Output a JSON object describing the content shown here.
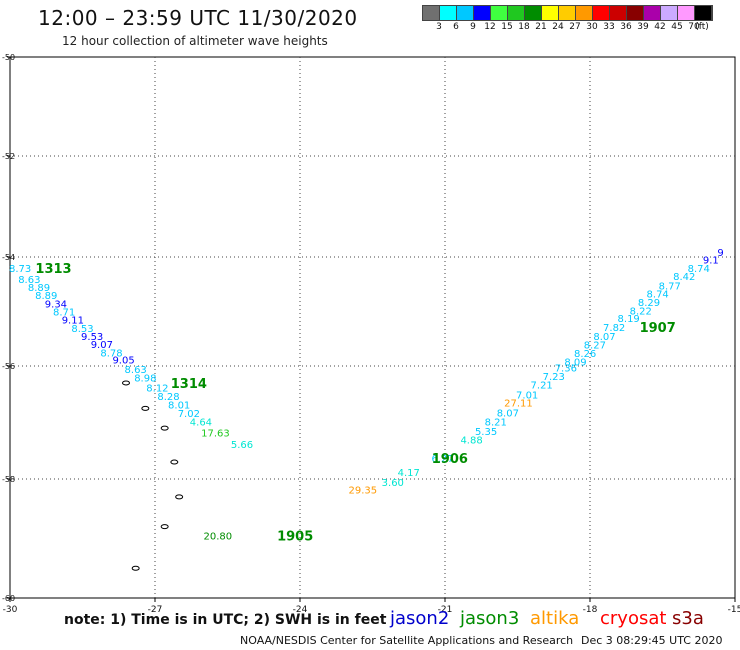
{
  "header": {
    "title": "12:00 – 23:59 UTC 11/30/2020",
    "subtitle": "12 hour collection of altimeter wave heights"
  },
  "color_scale": {
    "colors": [
      "#707070",
      "#00ffff",
      "#00c8ff",
      "#0000ff",
      "#40ff40",
      "#20c820",
      "#008c00",
      "#ffff00",
      "#ffcc00",
      "#ff9900",
      "#ff0000",
      "#cc0000",
      "#880000",
      "#aa00aa",
      "#ccaaff",
      "#ff99ff",
      "#000000"
    ],
    "labels": [
      "3",
      "6",
      "9",
      "12",
      "15",
      "18",
      "21",
      "24",
      "27",
      "30",
      "33",
      "36",
      "39",
      "42",
      "45",
      "70",
      "(ft)"
    ]
  },
  "footer": {
    "note": "note: 1) Time is in UTC; 2) SWH is in feet",
    "credit": "NOAA/NESDIS Center for Satellite Applications and Research",
    "generated": "Dec  3 08:29:45 UTC 2020"
  },
  "satellites": [
    {
      "name": "jason2",
      "color": "#0000cc"
    },
    {
      "name": "jason3",
      "color": "#008c00"
    },
    {
      "name": "altika",
      "color": "#ff9900"
    },
    {
      "name": "cryosat",
      "color": "#ff0000"
    },
    {
      "name": "s3a",
      "color": "#880000"
    }
  ],
  "chart_data": {
    "type": "scatter",
    "title": "12:00 – 23:59 UTC 11/30/2020",
    "xlabel": "",
    "ylabel": "",
    "xlim": [
      -30,
      -15
    ],
    "ylim": [
      -60,
      -50
    ],
    "xticks": [
      -30,
      -27,
      -24,
      -21,
      -18,
      -15
    ],
    "xtick_labels": [
      "-30",
      "-27",
      "-24",
      "-21",
      "-18",
      "-15"
    ],
    "yticks": [
      -50,
      -52,
      -54,
      -56,
      -58,
      -60
    ],
    "ytick_labels": [
      "-50",
      "-52",
      "-54",
      "-56",
      "-58",
      "-60"
    ],
    "grid": true,
    "units": "ft",
    "points": [
      {
        "x": -29.79,
        "y": -54.2,
        "value": "8.73",
        "color": "#00c8ff"
      },
      {
        "x": -29.6,
        "y": -54.4,
        "value": "8.63",
        "color": "#00c8ff"
      },
      {
        "x": -29.4,
        "y": -54.55,
        "value": "8.89",
        "color": "#00c8ff"
      },
      {
        "x": -29.25,
        "y": -54.7,
        "value": "8.89",
        "color": "#00c8ff"
      },
      {
        "x": -29.05,
        "y": -54.85,
        "value": "9.34",
        "color": "#0000ff"
      },
      {
        "x": -28.88,
        "y": -55.0,
        "value": "8.71",
        "color": "#00c8ff"
      },
      {
        "x": -28.7,
        "y": -55.15,
        "value": "9.11",
        "color": "#0000ff"
      },
      {
        "x": -28.5,
        "y": -55.3,
        "value": "8.53",
        "color": "#00c8ff"
      },
      {
        "x": -28.3,
        "y": -55.45,
        "value": "9.53",
        "color": "#0000ff"
      },
      {
        "x": -28.1,
        "y": -55.6,
        "value": "9.07",
        "color": "#0000ff"
      },
      {
        "x": -27.9,
        "y": -55.75,
        "value": "8.78",
        "color": "#00c8ff"
      },
      {
        "x": -27.65,
        "y": -55.88,
        "value": "9.05",
        "color": "#0000ff"
      },
      {
        "x": -27.4,
        "y": -56.05,
        "value": "8.63",
        "color": "#00c8ff"
      },
      {
        "x": -27.2,
        "y": -56.2,
        "value": "8.98",
        "color": "#00c8ff"
      },
      {
        "x": -26.95,
        "y": -56.38,
        "value": "8.12",
        "color": "#00c8ff"
      },
      {
        "x": -26.72,
        "y": -56.53,
        "value": "8.28",
        "color": "#00c8ff"
      },
      {
        "x": -26.5,
        "y": -56.68,
        "value": "8.01",
        "color": "#00c8ff"
      },
      {
        "x": -26.3,
        "y": -56.83,
        "value": "7.02",
        "color": "#00c8ff"
      },
      {
        "x": -26.05,
        "y": -56.98,
        "value": "4.64",
        "color": "#00e6d2"
      },
      {
        "x": -25.75,
        "y": -57.18,
        "value": "17.63",
        "color": "#20c820"
      },
      {
        "x": -25.2,
        "y": -57.38,
        "value": "5.66",
        "color": "#00e6d2"
      },
      {
        "x": -25.7,
        "y": -58.95,
        "value": "20.80",
        "color": "#008c00"
      },
      {
        "x": -22.7,
        "y": -58.18,
        "value": "29.35",
        "color": "#ff9900"
      },
      {
        "x": -22.08,
        "y": -58.05,
        "value": "3.60",
        "color": "#00e6d2"
      },
      {
        "x": -21.75,
        "y": -57.88,
        "value": "4.17",
        "color": "#00e6d2"
      },
      {
        "x": -21.05,
        "y": -57.63,
        "value": "6.27",
        "color": "#00c8ff"
      },
      {
        "x": -20.45,
        "y": -57.3,
        "value": "4.88",
        "color": "#00e6d2"
      },
      {
        "x": -20.15,
        "y": -57.15,
        "value": "5.35",
        "color": "#00c8ff"
      },
      {
        "x": -19.95,
        "y": -56.98,
        "value": "8.21",
        "color": "#00c8ff"
      },
      {
        "x": -19.7,
        "y": -56.82,
        "value": "8.07",
        "color": "#00c8ff"
      },
      {
        "x": -19.48,
        "y": -56.65,
        "value": "27.11",
        "color": "#ff9900"
      },
      {
        "x": -19.3,
        "y": -56.5,
        "value": "7.01",
        "color": "#00c8ff"
      },
      {
        "x": -19.0,
        "y": -56.33,
        "value": "7.21",
        "color": "#00c8ff"
      },
      {
        "x": -18.75,
        "y": -56.18,
        "value": "7.23",
        "color": "#00c8ff"
      },
      {
        "x": -18.5,
        "y": -56.03,
        "value": "7.36",
        "color": "#00c8ff"
      },
      {
        "x": -18.3,
        "y": -55.92,
        "value": "8.09",
        "color": "#00c8ff"
      },
      {
        "x": -18.1,
        "y": -55.76,
        "value": "8.26",
        "color": "#00c8ff"
      },
      {
        "x": -17.9,
        "y": -55.61,
        "value": "8.27",
        "color": "#00c8ff"
      },
      {
        "x": -17.7,
        "y": -55.45,
        "value": "8.07",
        "color": "#00c8ff"
      },
      {
        "x": -17.5,
        "y": -55.28,
        "value": "7.82",
        "color": "#00c8ff"
      },
      {
        "x": -17.2,
        "y": -55.12,
        "value": "8.19",
        "color": "#00c8ff"
      },
      {
        "x": -16.95,
        "y": -54.98,
        "value": "8.22",
        "color": "#00c8ff"
      },
      {
        "x": -16.78,
        "y": -54.83,
        "value": "8.29",
        "color": "#00c8ff"
      },
      {
        "x": -16.6,
        "y": -54.67,
        "value": "8.74",
        "color": "#00c8ff"
      },
      {
        "x": -16.35,
        "y": -54.52,
        "value": "8.77",
        "color": "#00c8ff"
      },
      {
        "x": -16.05,
        "y": -54.35,
        "value": "8.42",
        "color": "#00c8ff"
      },
      {
        "x": -15.75,
        "y": -54.2,
        "value": "8.74",
        "color": "#00c8ff"
      },
      {
        "x": -15.5,
        "y": -54.05,
        "value": "9.1",
        "color": "#0000ff"
      },
      {
        "x": -15.3,
        "y": -53.9,
        "value": "9",
        "color": "#0000ff"
      }
    ],
    "time_labels": [
      {
        "x": -29.1,
        "y": -54.2,
        "text": "1313"
      },
      {
        "x": -26.3,
        "y": -56.3,
        "text": "1314"
      },
      {
        "x": -24.1,
        "y": -58.95,
        "text": "1905"
      },
      {
        "x": -20.9,
        "y": -57.63,
        "text": "1906"
      },
      {
        "x": -16.6,
        "y": -55.28,
        "text": "1907"
      }
    ],
    "islands": [
      {
        "x": -27.6,
        "y": -56.3
      },
      {
        "x": -27.2,
        "y": -56.75
      },
      {
        "x": -26.8,
        "y": -57.1
      },
      {
        "x": -26.6,
        "y": -57.7
      },
      {
        "x": -26.5,
        "y": -58.3
      },
      {
        "x": -26.8,
        "y": -58.8
      },
      {
        "x": -27.4,
        "y": -59.5
      }
    ]
  }
}
